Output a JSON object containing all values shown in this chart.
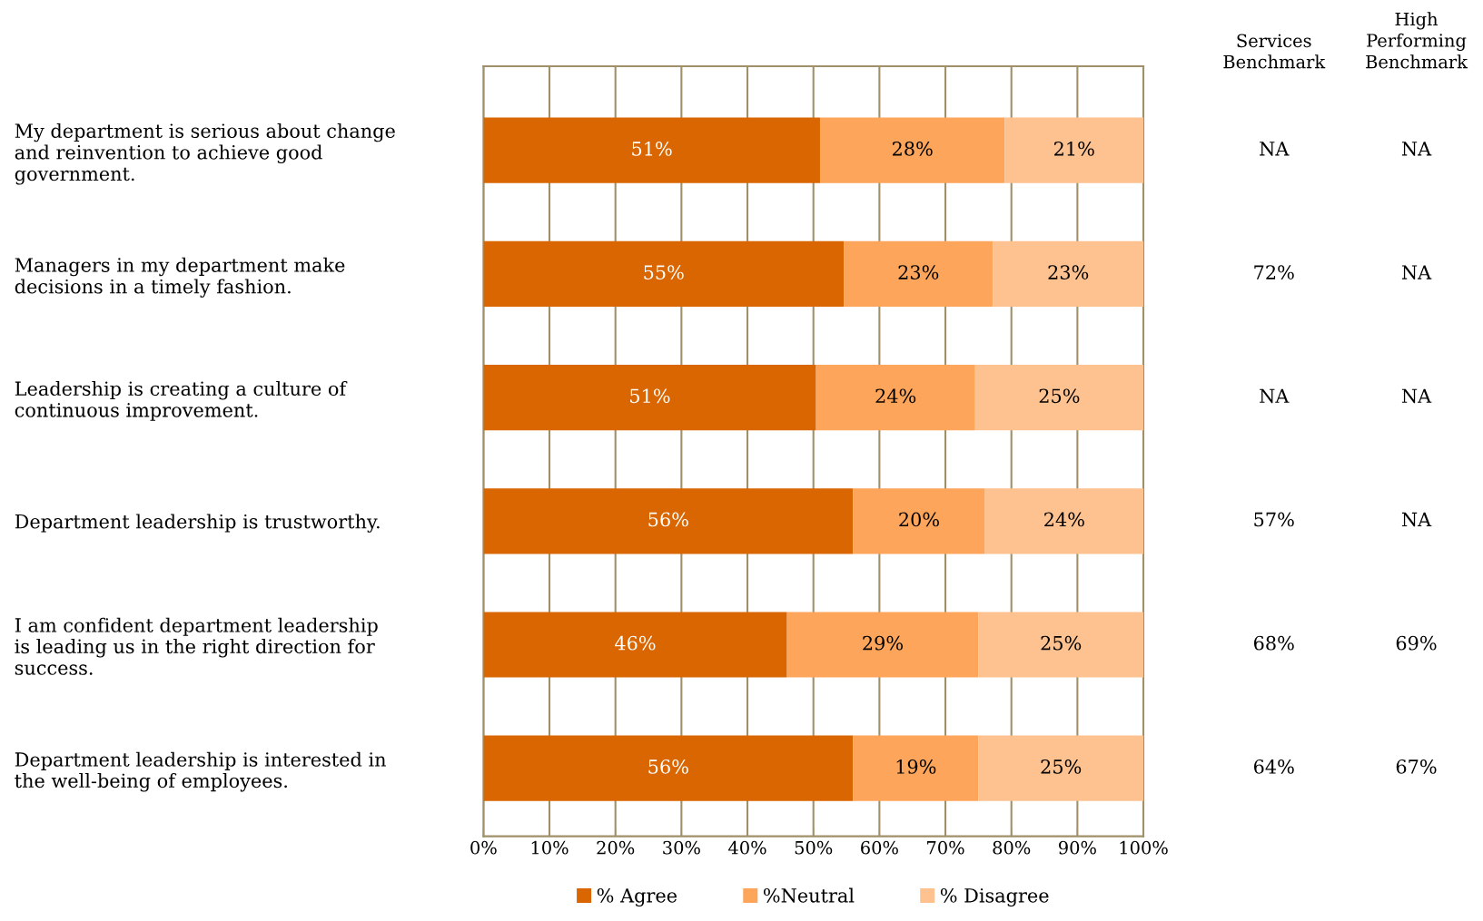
{
  "chart_data": {
    "type": "bar",
    "orientation": "horizontal",
    "stacked": true,
    "categories": [
      "My department is serious about change\nand reinvention to achieve good\ngovernment.",
      "Managers in my department make\ndecisions in a timely fashion.",
      "Leadership is creating a culture of\ncontinuous improvement.",
      "Department leadership is trustworthy.",
      "I am confident department leadership\nis leading us in the right direction for\nsuccess.",
      "Department leadership is interested in\nthe well-being of employees."
    ],
    "series": [
      {
        "name": "% Agree",
        "color": "#d96600",
        "values": [
          51,
          54.6,
          50.4,
          56,
          46,
          56
        ]
      },
      {
        "name": "%Neutral",
        "color": "#fda55a",
        "values": [
          28,
          22.6,
          24.1,
          20,
          29,
          19
        ]
      },
      {
        "name": "% Disagree",
        "color": "#fdc28f",
        "values": [
          21,
          22.8,
          25.5,
          24,
          25,
          25
        ]
      }
    ],
    "xlim": [
      0,
      100
    ],
    "xticks": [
      {
        "value": 0,
        "label": "0%"
      },
      {
        "value": 10,
        "label": "10%"
      },
      {
        "value": 20,
        "label": "20%"
      },
      {
        "value": 30,
        "label": "30%"
      },
      {
        "value": 40,
        "label": "40%"
      },
      {
        "value": 50,
        "label": "50%"
      },
      {
        "value": 60,
        "label": "60%"
      },
      {
        "value": 70,
        "label": "70%"
      },
      {
        "value": 80,
        "label": "80%"
      },
      {
        "value": 90,
        "label": "90%"
      },
      {
        "value": 100,
        "label": "100%"
      }
    ],
    "value_labels": [
      [
        "51%",
        "55%",
        "51%",
        "56%",
        "46%",
        "56%"
      ],
      [
        "28%",
        "23%",
        "24%",
        "20%",
        "29%",
        "19%"
      ],
      [
        "21%",
        "23%",
        "25%",
        "24%",
        "25%",
        "25%"
      ]
    ],
    "grid": "x",
    "legend": "bottom",
    "annotations": [
      "Services\nBenchmark",
      "High\nPerforming\nBenchmark",
      "NA",
      "NA",
      "72%",
      "NA",
      "NA",
      "NA",
      "57%",
      "NA",
      "68%",
      "69%",
      "64%",
      "67%"
    ]
  }
}
